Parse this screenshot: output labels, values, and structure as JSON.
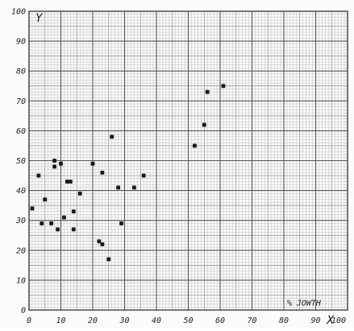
{
  "chart_data": {
    "type": "scatter",
    "title": "",
    "xlabel": "X",
    "ylabel": "Y",
    "xlabel_note": "%",
    "xlabel_caption": "JOWTH",
    "xlim": [
      0,
      100
    ],
    "ylim": [
      0,
      100
    ],
    "grid": true,
    "x_ticks": [
      "0",
      "10",
      "20",
      "30",
      "40",
      "50",
      "60",
      "70",
      "80",
      "90",
      "100"
    ],
    "y_ticks": [
      "0",
      "10",
      "20",
      "30",
      "40",
      "50",
      "60",
      "70",
      "80",
      "90",
      "100"
    ],
    "points": [
      {
        "x": 1,
        "y": 34
      },
      {
        "x": 3,
        "y": 45
      },
      {
        "x": 4,
        "y": 29
      },
      {
        "x": 5,
        "y": 37
      },
      {
        "x": 7,
        "y": 29
      },
      {
        "x": 8,
        "y": 50
      },
      {
        "x": 8,
        "y": 48
      },
      {
        "x": 9,
        "y": 27
      },
      {
        "x": 10,
        "y": 49
      },
      {
        "x": 11,
        "y": 31
      },
      {
        "x": 12,
        "y": 43
      },
      {
        "x": 13,
        "y": 43
      },
      {
        "x": 14,
        "y": 27
      },
      {
        "x": 14,
        "y": 33
      },
      {
        "x": 16,
        "y": 39
      },
      {
        "x": 20,
        "y": 49
      },
      {
        "x": 22,
        "y": 23
      },
      {
        "x": 23,
        "y": 22
      },
      {
        "x": 23,
        "y": 46
      },
      {
        "x": 25,
        "y": 17
      },
      {
        "x": 26,
        "y": 58
      },
      {
        "x": 28,
        "y": 41
      },
      {
        "x": 29,
        "y": 29
      },
      {
        "x": 33,
        "y": 41
      },
      {
        "x": 36,
        "y": 45
      },
      {
        "x": 52,
        "y": 55
      },
      {
        "x": 55,
        "y": 62
      },
      {
        "x": 56,
        "y": 73
      },
      {
        "x": 61,
        "y": 75
      }
    ]
  }
}
